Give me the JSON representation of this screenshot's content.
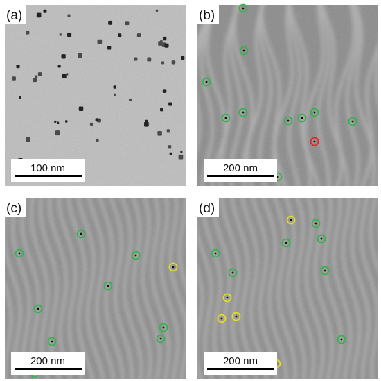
{
  "panels": [
    {
      "label": "(a)",
      "scale_bar": "100 nm"
    },
    {
      "label": "(b)",
      "scale_bar": "200 nm"
    },
    {
      "label": "(c)",
      "scale_bar": "200 nm"
    },
    {
      "label": "(d)",
      "scale_bar": "200 nm"
    }
  ]
}
